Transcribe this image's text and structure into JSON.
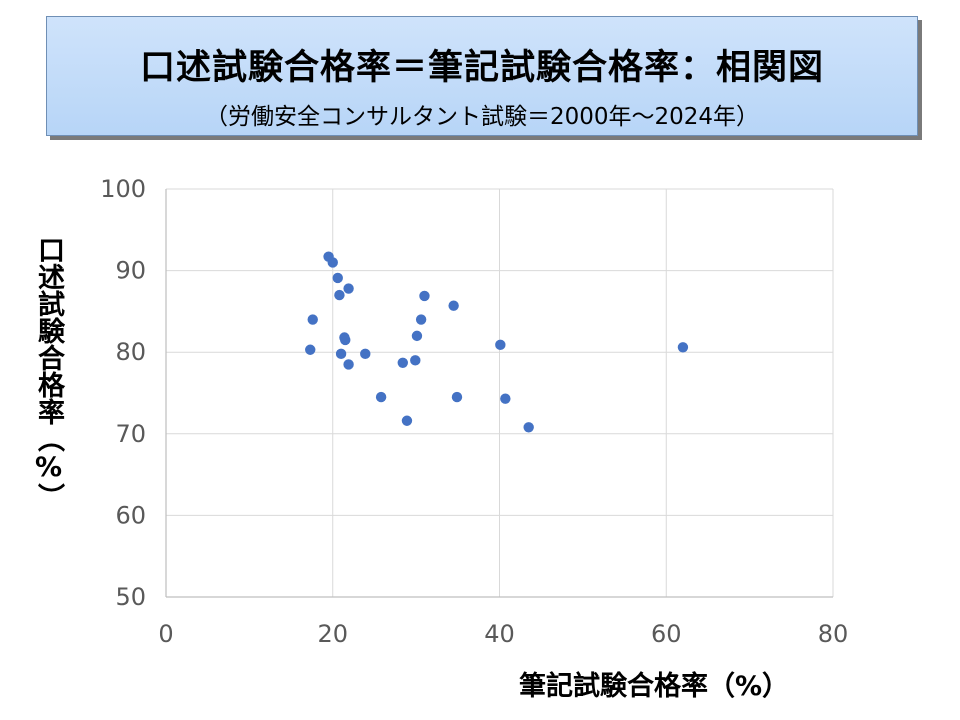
{
  "title": {
    "main": "口述試験合格率＝筆記試験合格率：相関図",
    "sub": "（労働安全コンサルタント試験＝2000年～2024年）"
  },
  "colors": {
    "title_bg": "#c5dcf7",
    "marker": "#4472c4",
    "grid": "#d9d9d9",
    "tick_text": "#595959"
  },
  "chart_data": {
    "type": "scatter",
    "title": "口述試験合格率＝筆記試験合格率：相関図",
    "subtitle": "（労働安全コンサルタント試験＝2000年～2024年）",
    "xlabel": "筆記試験合格率（%）",
    "ylabel": "口述試験合格率（%）",
    "xlim": [
      0,
      80
    ],
    "ylim": [
      50,
      100
    ],
    "xticks": [
      0,
      20,
      40,
      60,
      80
    ],
    "yticks": [
      50,
      60,
      70,
      80,
      90,
      100
    ],
    "grid": "vertical and horizontal",
    "legend": "none",
    "points": [
      {
        "x": 19.5,
        "y": 91.7
      },
      {
        "x": 20.0,
        "y": 91.0
      },
      {
        "x": 20.6,
        "y": 89.1
      },
      {
        "x": 21.9,
        "y": 87.8
      },
      {
        "x": 20.8,
        "y": 87.0
      },
      {
        "x": 17.6,
        "y": 84.0
      },
      {
        "x": 21.4,
        "y": 81.8
      },
      {
        "x": 21.5,
        "y": 81.5
      },
      {
        "x": 17.3,
        "y": 80.3
      },
      {
        "x": 21.0,
        "y": 79.8
      },
      {
        "x": 23.9,
        "y": 79.8
      },
      {
        "x": 21.9,
        "y": 78.5
      },
      {
        "x": 25.8,
        "y": 74.5
      },
      {
        "x": 28.4,
        "y": 78.7
      },
      {
        "x": 29.9,
        "y": 79.0
      },
      {
        "x": 28.9,
        "y": 71.6
      },
      {
        "x": 30.1,
        "y": 82.0
      },
      {
        "x": 30.6,
        "y": 84.0
      },
      {
        "x": 31.0,
        "y": 86.9
      },
      {
        "x": 34.5,
        "y": 85.7
      },
      {
        "x": 34.9,
        "y": 74.5
      },
      {
        "x": 40.1,
        "y": 80.9
      },
      {
        "x": 40.7,
        "y": 74.3
      },
      {
        "x": 43.5,
        "y": 70.8
      },
      {
        "x": 62.0,
        "y": 80.6
      }
    ]
  }
}
